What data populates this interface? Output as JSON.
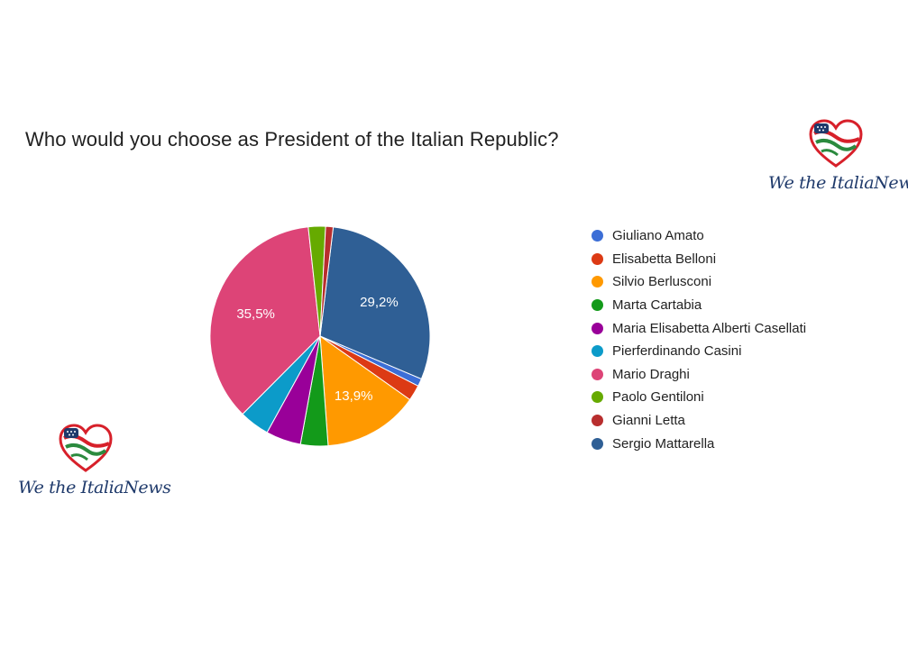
{
  "chart_data": {
    "type": "pie",
    "title": "Who would you choose as President of the Italian Republic?",
    "slices": [
      {
        "label": "Sergio Mattarella",
        "value": 29.2,
        "color": "#2f5f95",
        "data_label": "29,2%"
      },
      {
        "label": "Giuliano Amato",
        "value": 1.1,
        "color": "#3c6ed6"
      },
      {
        "label": "Elisabetta Belloni",
        "value": 2.3,
        "color": "#dc3a14"
      },
      {
        "label": "Silvio Berlusconi",
        "value": 13.9,
        "color": "#ff9900",
        "data_label": "13,9%"
      },
      {
        "label": "Marta Cartabia",
        "value": 4.0,
        "color": "#139a1a"
      },
      {
        "label": "Maria Elisabetta Alberti Casellati",
        "value": 5.1,
        "color": "#990099"
      },
      {
        "label": "Pierferdinando Casini",
        "value": 4.4,
        "color": "#0c9bc9"
      },
      {
        "label": "Mario Draghi",
        "value": 35.5,
        "color": "#dd4477",
        "data_label": "35,5%"
      },
      {
        "label": "Paolo Gentiloni",
        "value": 2.5,
        "color": "#66aa00"
      },
      {
        "label": "Gianni Letta",
        "value": 1.1,
        "color": "#b82e2e"
      }
    ],
    "legend": [
      "Giuliano Amato",
      "Elisabetta Belloni",
      "Silvio Berlusconi",
      "Marta Cartabia",
      "Maria Elisabetta Alberti Casellati",
      "Pierferdinando Casini",
      "Mario Draghi",
      "Paolo Gentiloni",
      "Gianni Letta",
      "Sergio Mattarella"
    ],
    "legend_position": "right"
  },
  "logos": {
    "brand_text": "We the ItaliaNews"
  }
}
